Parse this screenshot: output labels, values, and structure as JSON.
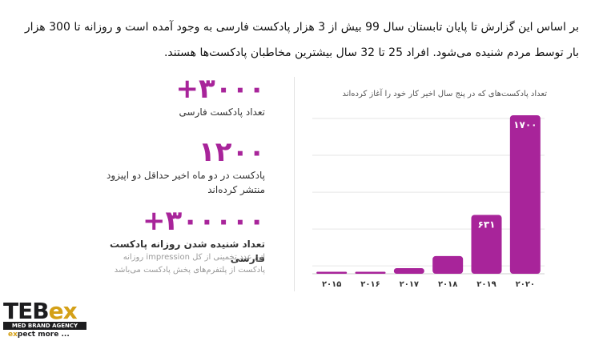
{
  "intro_text": "بر اساس این گزارش تا پایان تابستان سال 99 بیش از 3 هزار پادکست فارسی به وجود آمده است و روزانه تا 300 هزار بار توسط مردم شنیده می‌شود. افراد 25 تا 32 سال بیشترین مخاطبان پادکست‌ها هستند.",
  "stats": [
    {
      "value": "+۳۰۰۰",
      "label": "تعداد پادکست فارسی"
    },
    {
      "value": "۱۲۰۰",
      "label": "پادکست در دو ماه اخیر حداقل دو اپیزود منتشر کرده‌اند"
    },
    {
      "value": "+۳۰۰۰۰۰",
      "label": "تعداد شنیده شدن روزانه پادکست فارسی",
      "note": "این عدد تخمینی از کل impression روزانه پادکست از پلتفرم‌های پخش پادکست می‌باشد"
    }
  ],
  "logo": {
    "brand_a": "TEB",
    "brand_b": "ex",
    "agency": "MED BRAND AGENCY",
    "tag_a": "ex",
    "tag_b": "pect more ..."
  },
  "chart_data": {
    "type": "bar",
    "title": "تعداد پادکست‌های که در پنج سال اخیر کار خود را آغاز کرده‌اند",
    "categories": [
      "۲۰۱۵",
      "۲۰۱۶",
      "۲۰۱۷",
      "۲۰۱۸",
      "۲۰۱۹",
      "۲۰۲۰"
    ],
    "values": [
      5,
      15,
      60,
      190,
      631,
      1700
    ],
    "data_labels": [
      "",
      "",
      "",
      "",
      "۶۳۱",
      "۱۷۰۰"
    ],
    "ylim": [
      0,
      1700
    ],
    "color": "#a8249a",
    "grid": true
  }
}
